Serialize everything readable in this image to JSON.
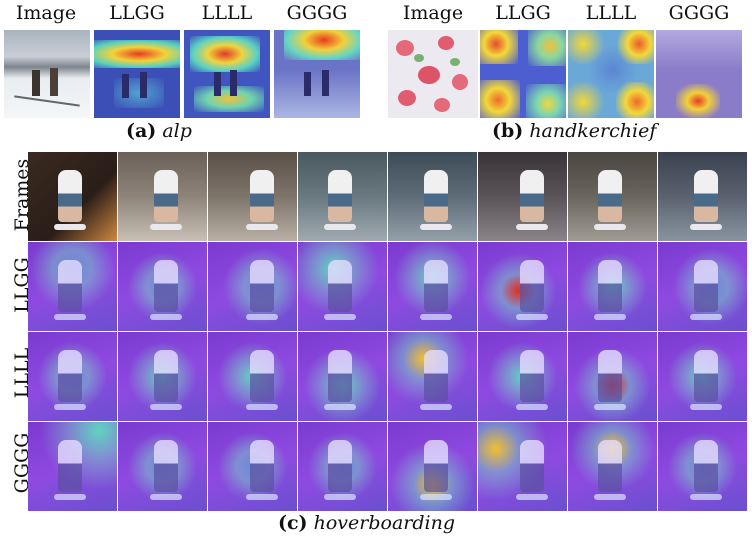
{
  "panel_a": {
    "headers": [
      "Image",
      "LLGG",
      "LLLL",
      "GGGG"
    ],
    "caption_label": "(a)",
    "caption_name": "alp"
  },
  "panel_b": {
    "headers": [
      "Image",
      "LLGG",
      "LLLL",
      "GGGG"
    ],
    "caption_label": "(b)",
    "caption_name": "handkerchief"
  },
  "panel_c": {
    "row_labels": [
      "Frames",
      "LLGG",
      "LLLL",
      "GGGG"
    ],
    "caption_label": "(c)",
    "caption_name": "hoverboarding"
  },
  "colors": {
    "heat_low": "#3b3fb8",
    "heat_mid": "#3fd0c8",
    "heat_high": "#f0e030",
    "heat_peak": "#e03020",
    "overlay_purple": "#8a3fd6"
  }
}
